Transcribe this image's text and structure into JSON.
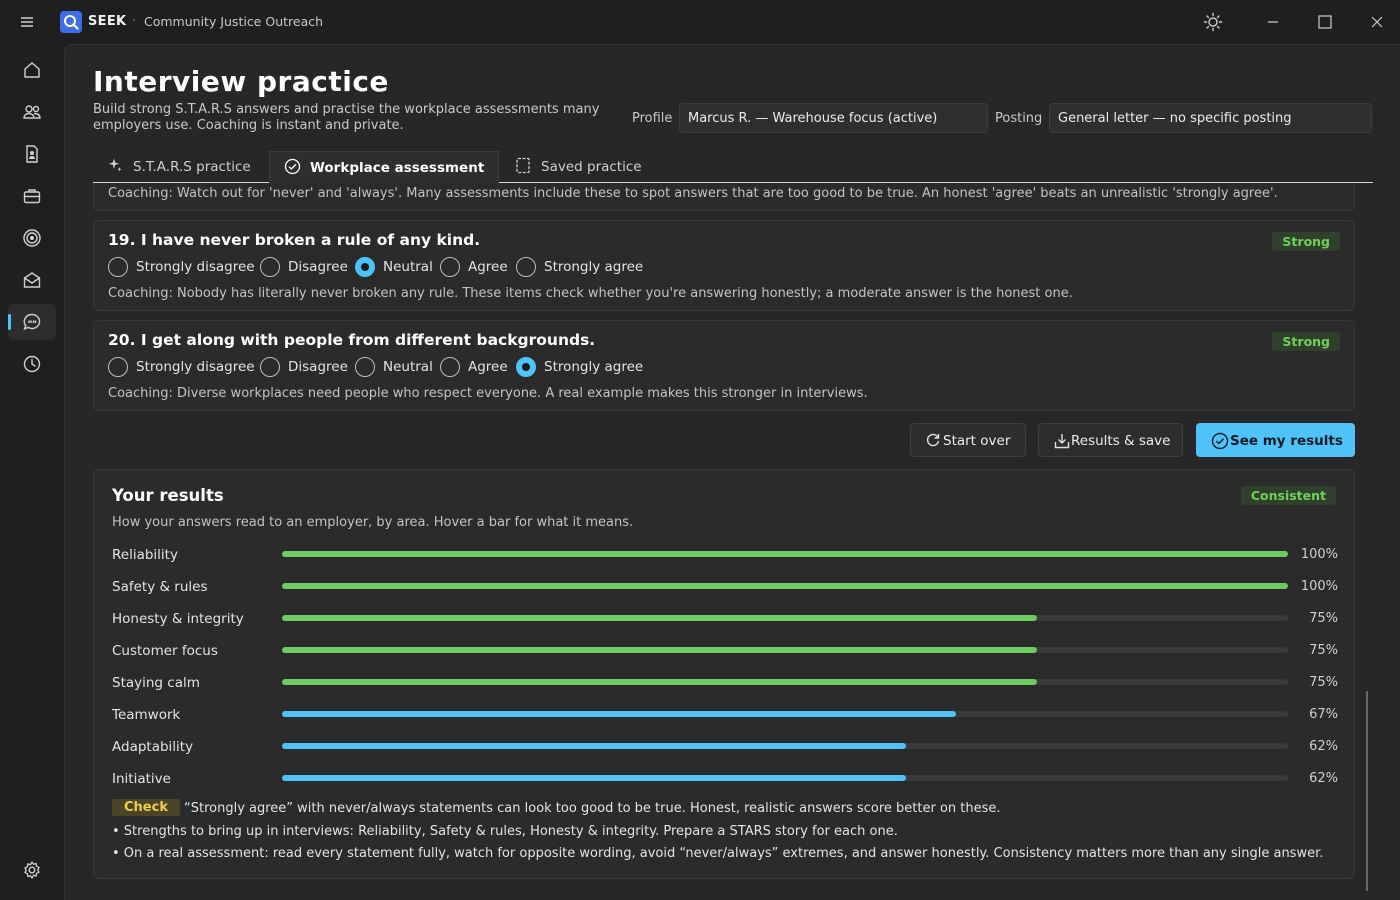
{
  "titlebar": {
    "brand": "SEEK",
    "separator": "·",
    "org": "Community Justice Outreach"
  },
  "sidebar": {
    "items": [
      {
        "name": "home-icon"
      },
      {
        "name": "people-icon"
      },
      {
        "name": "document-icon"
      },
      {
        "name": "briefcase-icon"
      },
      {
        "name": "target-icon"
      },
      {
        "name": "inbox-icon"
      },
      {
        "name": "chat-icon",
        "active": true
      },
      {
        "name": "history-icon"
      },
      {
        "name": "settings-icon"
      }
    ]
  },
  "page": {
    "title": "Interview practice",
    "subtitle": "Build strong S.T.A.R.S answers and practise the workplace assessments many employers use. Coaching is instant and private.",
    "profile_label": "Profile",
    "profile_value": "Marcus R. — Warehouse focus  (active)",
    "posting_label": "Posting",
    "posting_value": "General letter — no specific posting"
  },
  "tabs": [
    {
      "label": "S.T.A.R.S practice",
      "icon": "sparkle-icon"
    },
    {
      "label": "Workplace assessment",
      "icon": "check-circle-icon",
      "selected": true
    },
    {
      "label": "Saved practice",
      "icon": "bookmark-icon"
    }
  ],
  "top_coaching": "Coaching: Watch out for 'never' and 'always'. Many assessments include these to spot answers that are too good to be true. An honest 'agree' beats an unrealistic 'strongly agree'.",
  "scale": [
    "Strongly disagree",
    "Disagree",
    "Neutral",
    "Agree",
    "Strongly agree"
  ],
  "questions": [
    {
      "title": "19. I have never broken a rule of any kind.",
      "badge": "Strong",
      "selected": "Neutral",
      "coaching": "Coaching: Nobody has literally never broken any rule. These items check whether you're answering honestly; a moderate answer is the honest one."
    },
    {
      "title": "20. I get along with people from different backgrounds.",
      "badge": "Strong",
      "selected": "Strongly agree",
      "coaching": "Coaching: Diverse workplaces need people who respect everyone. A real example makes this stronger in interviews."
    }
  ],
  "actions": {
    "start_over": "Start over",
    "results_save": "Results & save",
    "see_results": "See my results"
  },
  "results": {
    "title": "Your results",
    "badge": "Consistent",
    "subtitle": "How your answers read to an employer, by area. Hover a bar for what it means.",
    "colors": {
      "green": "#6ccb5f",
      "blue": "#4fc3f7"
    },
    "areas": [
      {
        "name": "Reliability",
        "pct": "100%",
        "value": 100,
        "color": "green"
      },
      {
        "name": "Safety & rules",
        "pct": "100%",
        "value": 100,
        "color": "green"
      },
      {
        "name": "Honesty & integrity",
        "pct": "75%",
        "value": 75,
        "color": "green"
      },
      {
        "name": "Customer focus",
        "pct": "75%",
        "value": 75,
        "color": "green"
      },
      {
        "name": "Staying calm",
        "pct": "75%",
        "value": 75,
        "color": "green"
      },
      {
        "name": "Teamwork",
        "pct": "67%",
        "value": 67,
        "color": "blue"
      },
      {
        "name": "Adaptability",
        "pct": "62%",
        "value": 62,
        "color": "blue"
      },
      {
        "name": "Initiative",
        "pct": "62%",
        "value": 62,
        "color": "blue"
      }
    ],
    "check_label": "Check",
    "check_text": "“Strongly agree” with never/always statements can look too good to be true. Honest, realistic answers score better on these.",
    "bullets": [
      "• Strengths to bring up in interviews: Reliability, Safety & rules, Honesty & integrity. Prepare a STARS story for each one.",
      "• On a real assessment: read every statement fully, watch for opposite wording, avoid “never/always” extremes, and answer honestly. Consistency matters more than any single answer."
    ]
  }
}
